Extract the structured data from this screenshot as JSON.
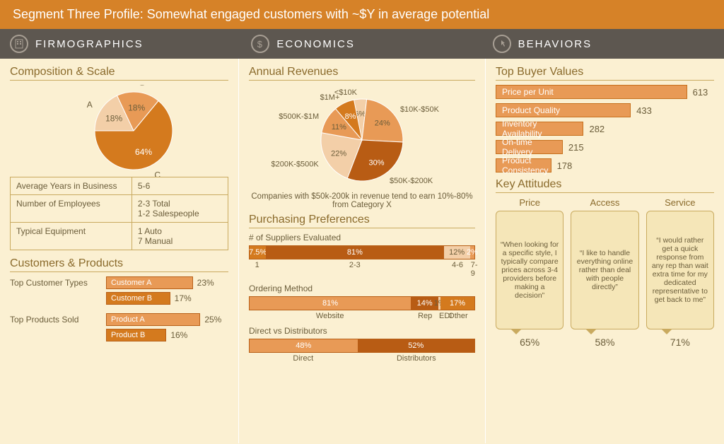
{
  "colors": {
    "accent": "#d47a1e",
    "accent_light": "#e89a56",
    "accent_pale": "#f3cfa8",
    "accent_dark": "#b85c14",
    "neutral_text": "#6b5d3a",
    "section_title": "#8a6a2b",
    "panel_bg": "#fbf0d2",
    "header_bg": "#5d5750",
    "title_bg": "#d68228"
  },
  "title": "Segment Three Profile:  Somewhat engaged customers with ~$Y in average potential",
  "headers": {
    "firmographics": "FIRMOGRAPHICS",
    "economics": "ECONOMICS",
    "behaviors": "BEHAVIORS"
  },
  "firmographics": {
    "composition_title": "Composition & Scale",
    "composition_pie": {
      "type": "pie",
      "slices": [
        {
          "label": "A",
          "pct": 18,
          "color": "#f3cfa8",
          "pct_text": "18%"
        },
        {
          "label": "B",
          "pct": 18,
          "color": "#e89a56",
          "pct_text": "18%"
        },
        {
          "label": "C",
          "pct": 64,
          "color": "#d47a1e",
          "pct_text": "64%"
        }
      ],
      "radius": 55
    },
    "info_table": {
      "rows": [
        {
          "k": "Average Years in Business",
          "v": "5-6"
        },
        {
          "k": "Number of Employees",
          "v": "2-3 Total\n1-2 Salespeople"
        },
        {
          "k": "Typical Equipment",
          "v": "1 Auto\n7 Manual"
        }
      ]
    },
    "customers_title": "Customers & Products",
    "top_customers": {
      "lead": "Top Customer Types",
      "items": [
        {
          "label": "Customer A",
          "pct": 23,
          "pct_text": "23%",
          "color": "#e89a56"
        },
        {
          "label": "Customer B",
          "pct": 17,
          "pct_text": "17%",
          "color": "#d47a1e"
        }
      ],
      "max_pct": 30
    },
    "top_products": {
      "lead": "Top Products Sold",
      "items": [
        {
          "label": "Product A",
          "pct": 25,
          "pct_text": "25%",
          "color": "#e89a56"
        },
        {
          "label": "Product B",
          "pct": 16,
          "pct_text": "16%",
          "color": "#d47a1e"
        }
      ],
      "max_pct": 30
    }
  },
  "economics": {
    "revenues_title": "Annual Revenues",
    "revenues_pie": {
      "type": "pie",
      "radius": 58,
      "slices": [
        {
          "label": "<$10K",
          "pct": 6,
          "pct_text": "6%",
          "color": "#f3cfa8"
        },
        {
          "label": "$10K-$50K",
          "pct": 24,
          "pct_text": "24%",
          "color": "#e89a56"
        },
        {
          "label": "$50K-$200K",
          "pct": 30,
          "pct_text": "30%",
          "color": "#b85c14"
        },
        {
          "label": "$200K-$500K",
          "pct": 22,
          "pct_text": "22%",
          "color": "#f3cfa8"
        },
        {
          "label": "$500K-$1M",
          "pct": 11,
          "pct_text": "11%",
          "color": "#e89a56"
        },
        {
          "label": "$1M+",
          "pct": 8,
          "pct_text": "8%",
          "color": "#d47a1e"
        }
      ],
      "start_angle": -105
    },
    "revenues_note": "Companies with $50k-200k in revenue tend to earn 10%-80% from Category X",
    "purchasing_title": "Purchasing Preferences",
    "suppliers": {
      "title": "# of Suppliers Evaluated",
      "segments": [
        {
          "label": "1",
          "pct": 7.5,
          "pct_text": "7.5%",
          "color": "#d47a1e"
        },
        {
          "label": "2-3",
          "pct": 81,
          "pct_text": "81%",
          "color": "#b85c14"
        },
        {
          "label": "4-6",
          "pct": 12,
          "pct_text": "12%",
          "color": "#f3cfa8"
        },
        {
          "label": "7-9",
          "pct": 2,
          "pct_text": "2%",
          "color": "#e89a56"
        }
      ]
    },
    "ordering": {
      "title": "Ordering Method",
      "segments": [
        {
          "label": "Website",
          "pct": 81,
          "pct_text": "81%",
          "color": "#e89a56"
        },
        {
          "label": "Rep",
          "pct": 14,
          "pct_text": "14%",
          "color": "#b85c14"
        },
        {
          "label": "EDI",
          "pct": 1,
          "pct_text": "1%",
          "color": "#f3cfa8"
        },
        {
          "label": "Other",
          "pct": 17,
          "pct_text": "17%",
          "color": "#d47a1e"
        }
      ]
    },
    "direct_dist": {
      "title": "Direct vs Distributors",
      "segments": [
        {
          "label": "Direct",
          "pct": 48,
          "pct_text": "48%",
          "color": "#e89a56"
        },
        {
          "label": "Distributors",
          "pct": 52,
          "pct_text": "52%",
          "color": "#b85c14"
        }
      ]
    }
  },
  "behaviors": {
    "values_title": "Top Buyer Values",
    "buyer_values": {
      "max": 700,
      "items": [
        {
          "label": "Price per Unit",
          "val": 613
        },
        {
          "label": "Product Quality",
          "val": 433
        },
        {
          "label": "Inventory Availability",
          "val": 282
        },
        {
          "label": "On-time Delivery",
          "val": 215
        },
        {
          "label": "Product  Consistency",
          "val": 178
        }
      ]
    },
    "attitudes_title": "Key Attitudes",
    "attitudes": [
      {
        "title": "Price",
        "quote": "“When looking for a specific style, I typically compare prices across 3-4 providers before making a decision”",
        "pct_text": "65%"
      },
      {
        "title": "Access",
        "quote": "“I like to handle everything online rather than deal with people directly”",
        "pct_text": "58%"
      },
      {
        "title": "Service",
        "quote": "“I would rather get a quick response from any rep than wait extra time for my dedicated representative to get back to me”",
        "pct_text": "71%"
      }
    ]
  }
}
